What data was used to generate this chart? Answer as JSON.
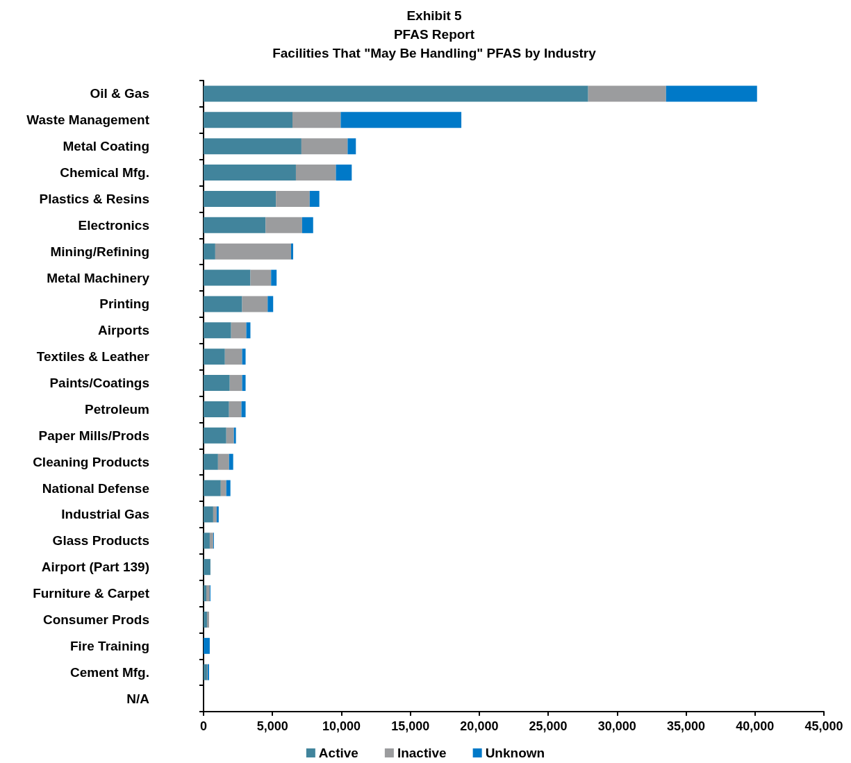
{
  "chart_data": {
    "type": "bar",
    "orientation": "horizontal",
    "stacked": true,
    "title": "Exhibit 5\nPFAS Report\nFacilities That \"May Be Handling\" PFAS by Industry",
    "categories": [
      "Oil & Gas",
      "Waste Management",
      "Metal Coating",
      "Chemical Mfg.",
      "Plastics & Resins",
      "Electronics",
      "Mining/Refining",
      "Metal Machinery",
      "Printing",
      "Airports",
      "Textiles & Leather",
      "Paints/Coatings",
      "Petroleum",
      "Paper Mills/Prods",
      "Cleaning Products",
      "National Defense",
      "Industrial Gas",
      "Glass Products",
      "Airport (Part 139)",
      "Furniture & Carpet",
      "Consumer Prods",
      "Fire Training",
      "Cement Mfg.",
      "N/A"
    ],
    "series": [
      {
        "name": "Active",
        "color": "#41849c",
        "values": [
          27900,
          6450,
          7100,
          6700,
          5250,
          4500,
          850,
          3400,
          2800,
          2000,
          1550,
          1900,
          1850,
          1650,
          1050,
          1250,
          700,
          450,
          500,
          200,
          250,
          0,
          250,
          0
        ]
      },
      {
        "name": "Inactive",
        "color": "#9b9c9e",
        "values": [
          5650,
          3500,
          3350,
          2900,
          2450,
          2650,
          5500,
          1500,
          1850,
          1100,
          1250,
          900,
          900,
          550,
          800,
          400,
          250,
          250,
          0,
          250,
          150,
          0,
          50,
          0
        ]
      },
      {
        "name": "Unknown",
        "color": "#0079c8",
        "values": [
          6600,
          8750,
          600,
          1150,
          700,
          800,
          150,
          400,
          400,
          300,
          250,
          250,
          300,
          150,
          300,
          300,
          150,
          50,
          0,
          50,
          0,
          450,
          100,
          0
        ]
      }
    ],
    "xlim": [
      0,
      45000
    ],
    "xticks": [
      0,
      {
        "value": 5000,
        "label": "5,000"
      },
      {
        "value": 10000,
        "label": "10,000"
      },
      {
        "value": 15000,
        "label": "15,000"
      },
      {
        "value": 20000,
        "label": "20,000"
      },
      {
        "value": 25000,
        "label": "25,000"
      },
      {
        "value": 30000,
        "label": "30,000"
      },
      {
        "value": 35000,
        "label": "35,000"
      },
      {
        "value": 40000,
        "label": "40,000"
      },
      {
        "value": 45000,
        "label": "45,000"
      }
    ],
    "grid": false,
    "legend": "bottom"
  }
}
